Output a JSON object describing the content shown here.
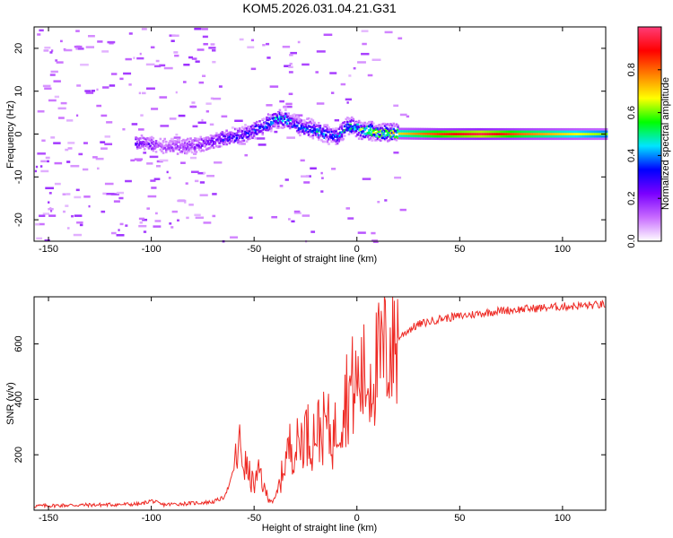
{
  "title": "KOM5.2026.031.04.21.G31",
  "chart_data": [
    {
      "type": "heatmap",
      "title": "KOM5.2026.031.04.21.G31",
      "xlabel": "Height of straight line (km)",
      "ylabel": "Frequency (Hz)",
      "xlim": [
        -157,
        121
      ],
      "ylim": [
        -25,
        25
      ],
      "xticks": [
        -150,
        -100,
        -50,
        0,
        50,
        100
      ],
      "yticks": [
        -20,
        -10,
        0,
        10,
        20
      ],
      "colorbar": {
        "label": "Normalized spectral amplitude",
        "range": [
          0,
          1
        ],
        "ticks": [
          0.0,
          0.2,
          0.4,
          0.6,
          0.8
        ],
        "colors": [
          "#ffffff",
          "#c86bff",
          "#7a00ff",
          "#0000ff",
          "#00e5ff",
          "#00ff00",
          "#ffff00",
          "#ff8000",
          "#ff0000",
          "#ff3c78"
        ]
      },
      "ridge": {
        "x": [
          -105,
          -95,
          -85,
          -75,
          -65,
          -55,
          -45,
          -40,
          -35,
          -30,
          -25,
          -20,
          -15,
          -10,
          -5,
          0,
          10,
          20,
          40,
          60,
          80,
          100,
          121
        ],
        "y": [
          -2.0,
          -2.8,
          -3.0,
          -2.2,
          -1.0,
          0.0,
          2.0,
          3.5,
          3.6,
          2.0,
          1.5,
          1.0,
          0.0,
          -0.5,
          2.0,
          1.2,
          0.5,
          0.1,
          0.0,
          0.0,
          0.0,
          0.0,
          0.0
        ],
        "amplitude": [
          0.25,
          0.15,
          0.2,
          0.2,
          0.3,
          0.3,
          0.35,
          0.45,
          0.45,
          0.35,
          0.4,
          0.45,
          0.4,
          0.35,
          0.5,
          0.55,
          0.6,
          0.7,
          0.85,
          0.95,
          0.8,
          0.7,
          0.6
        ]
      }
    },
    {
      "type": "line",
      "xlabel": "Height of straight line (km)",
      "ylabel": "SNR (v/v)",
      "xlim": [
        -157,
        121
      ],
      "ylim": [
        0,
        770
      ],
      "xticks": [
        -150,
        -100,
        -50,
        0,
        50,
        100
      ],
      "yticks": [
        200,
        400,
        600
      ],
      "series": [
        {
          "name": "SNR",
          "color": "#ee2a24",
          "x": [
            -157,
            -140,
            -120,
            -105,
            -100,
            -95,
            -80,
            -70,
            -65,
            -62,
            -60,
            -57,
            -55,
            -52,
            -50,
            -47,
            -45,
            -42,
            -40,
            -37,
            -35,
            -32,
            -30,
            -27,
            -25,
            -22,
            -20,
            -17,
            -15,
            -12,
            -10,
            -7,
            -5,
            -3,
            0,
            3,
            5,
            8,
            10,
            13,
            15,
            20,
            25,
            30,
            40,
            50,
            60,
            70,
            80,
            90,
            100,
            110,
            121
          ],
          "y": [
            15,
            18,
            20,
            22,
            35,
            20,
            25,
            30,
            45,
            90,
            150,
            230,
            170,
            120,
            90,
            140,
            70,
            40,
            30,
            110,
            180,
            240,
            220,
            260,
            290,
            250,
            300,
            280,
            320,
            250,
            300,
            380,
            420,
            440,
            450,
            480,
            460,
            510,
            520,
            560,
            580,
            620,
            650,
            670,
            690,
            700,
            710,
            720,
            725,
            730,
            735,
            738,
            742
          ]
        }
      ]
    }
  ]
}
